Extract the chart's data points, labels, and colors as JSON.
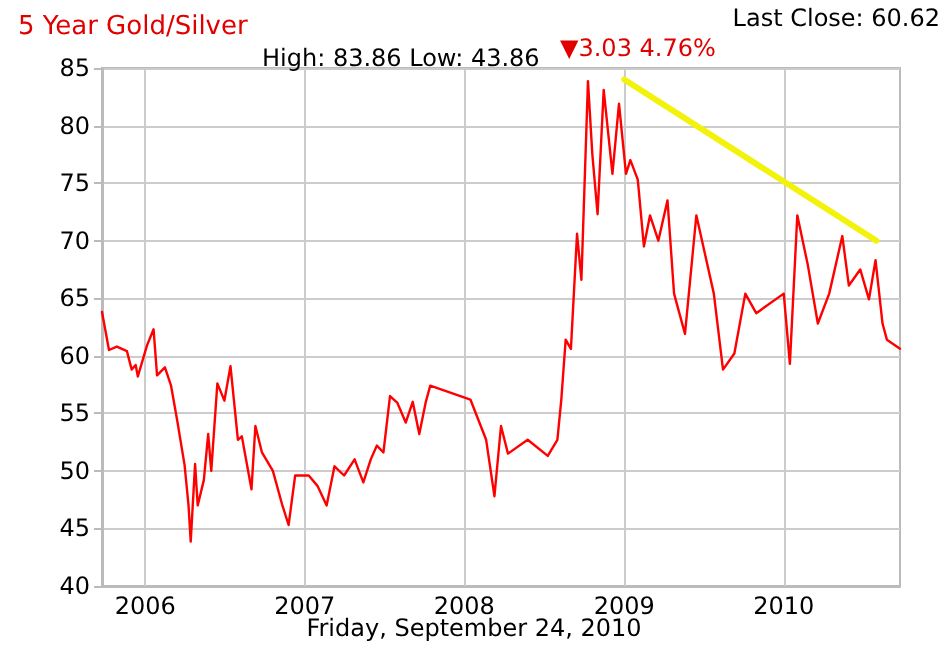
{
  "chart_data": {
    "type": "line",
    "title": "5 Year Gold/Silver",
    "subtitle": "High: 83.86 Low: 43.86",
    "xlabel": "Friday, September 24, 2010",
    "annotations": [
      "Last Close: 60.62",
      "▼3.03 4.76%"
    ],
    "xlim": [
      "2005-09-24",
      "2010-09-24"
    ],
    "xticks": [
      "2006",
      "2007",
      "2008",
      "2009",
      "2010"
    ],
    "ylim": [
      40,
      85
    ],
    "yticks": [
      40,
      45,
      50,
      55,
      60,
      65,
      70,
      75,
      80,
      85
    ],
    "grid": true,
    "marker": "none",
    "line_style": "solid",
    "series": [
      {
        "color": "#ff0000",
        "x": [
          "2005-09-24",
          "2005-10-10",
          "2005-10-28",
          "2005-11-20",
          "2005-12-01",
          "2005-12-10",
          "2005-12-15",
          "2006-01-05",
          "2006-01-20",
          "2006-01-28",
          "2006-02-15",
          "2006-03-01",
          "2006-03-15",
          "2006-04-01",
          "2006-04-10",
          "2006-04-15",
          "2006-04-25",
          "2006-05-01",
          "2006-05-15",
          "2006-05-25",
          "2006-06-01",
          "2006-06-15",
          "2006-07-01",
          "2006-07-15",
          "2006-08-01",
          "2006-08-10",
          "2006-09-01",
          "2006-09-10",
          "2006-09-25",
          "2006-10-20",
          "2006-11-10",
          "2006-11-25",
          "2006-12-10",
          "2007-01-10",
          "2007-01-30",
          "2007-02-20",
          "2007-03-10",
          "2007-04-01",
          "2007-04-25",
          "2007-05-15",
          "2007-06-01",
          "2007-06-15",
          "2007-06-30",
          "2007-07-15",
          "2007-08-01",
          "2007-08-20",
          "2007-09-05",
          "2007-09-20",
          "2007-10-05",
          "2007-10-15",
          "2008-01-15",
          "2008-02-20",
          "2008-03-10",
          "2008-03-25",
          "2008-04-10",
          "2008-05-25",
          "2008-07-10",
          "2008-08-01",
          "2008-08-10",
          "2008-08-20",
          "2008-09-01",
          "2008-09-15",
          "2008-09-25",
          "2008-10-10",
          "2008-10-20",
          "2008-11-01",
          "2008-11-15",
          "2008-12-05",
          "2008-12-20",
          "2009-01-05",
          "2009-01-15",
          "2009-02-01",
          "2009-02-15",
          "2009-03-01",
          "2009-03-20",
          "2009-04-10",
          "2009-04-25",
          "2009-05-20",
          "2009-06-15",
          "2009-07-25",
          "2009-08-15",
          "2009-09-10",
          "2009-10-05",
          "2009-10-30",
          "2010-01-01",
          "2010-01-15",
          "2010-02-01",
          "2010-02-25",
          "2010-03-20",
          "2010-04-15",
          "2010-05-15",
          "2010-05-30",
          "2010-06-25",
          "2010-07-15",
          "2010-07-30",
          "2010-08-15",
          "2010-08-25",
          "2010-09-24"
        ],
        "values": [
          63.8,
          60.5,
          60.8,
          60.4,
          58.8,
          59.2,
          58.2,
          60.9,
          62.3,
          58.3,
          59,
          57.4,
          54.4,
          50.5,
          47,
          43.86,
          50.6,
          47,
          49.2,
          53.2,
          50,
          57.6,
          56.1,
          59.1,
          52.7,
          53,
          48.4,
          53.9,
          51.6,
          50,
          47.1,
          45.3,
          49.6,
          49.6,
          48.7,
          47,
          50.4,
          49.6,
          51,
          49,
          51,
          52.2,
          51.6,
          56.5,
          55.9,
          54.2,
          56,
          53.2,
          56,
          57.4,
          56.2,
          52.7,
          47.8,
          53.9,
          51.5,
          52.7,
          51.3,
          52.7,
          56.2,
          61.4,
          60.6,
          70.6,
          66.6,
          83.86,
          77.5,
          72.3,
          83.1,
          75.8,
          81.9,
          75.8,
          77,
          75.3,
          69.5,
          72.2,
          70,
          73.5,
          65.4,
          61.9,
          72.2,
          65.4,
          58.8,
          60.2,
          65.4,
          63.7,
          65.4,
          59.3,
          72.2,
          67.9,
          62.8,
          65.4,
          70.4,
          66.1,
          67.5,
          64.9,
          68.3,
          62.8,
          61.4,
          60.62
        ]
      },
      {
        "color": "#f2f20a",
        "x": [
          "2009-01-01",
          "2010-08-01"
        ],
        "values": [
          84,
          70
        ]
      }
    ]
  }
}
